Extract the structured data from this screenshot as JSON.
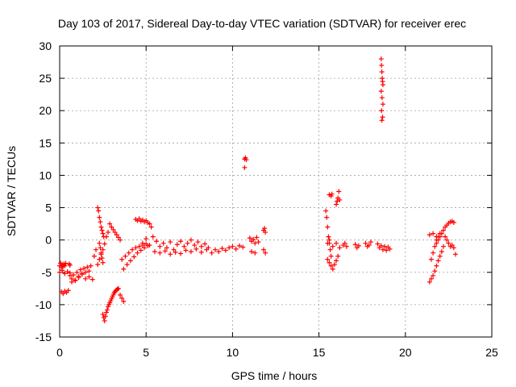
{
  "chart_data": {
    "type": "scatter",
    "title": "Day 103 of 2017, Sidereal Day-to-day VTEC variation (SDTVAR) for receiver erec",
    "xlabel": "GPS time / hours",
    "ylabel": "SDTVAR / TECUs",
    "xlim": [
      0,
      25
    ],
    "ylim": [
      -15,
      30
    ],
    "xticks": [
      0,
      5,
      10,
      15,
      20,
      25
    ],
    "yticks": [
      -15,
      -10,
      -5,
      0,
      5,
      10,
      15,
      20,
      25,
      30
    ],
    "grid": true,
    "marker": "+",
    "color": "#ff0000",
    "series": [
      {
        "name": "SDTVAR",
        "x": [
          0.0,
          0.05,
          0.1,
          0.15,
          0.2,
          0.25,
          0.3,
          0.35,
          0.1,
          0.2,
          0.3,
          0.4,
          0.5,
          0.55,
          0.6,
          0.0,
          0.15,
          0.3,
          0.45,
          0.6,
          0.6,
          0.7,
          0.8,
          0.9,
          1.0,
          1.1,
          1.2,
          1.3,
          1.4,
          1.5,
          1.6,
          1.7,
          1.8,
          0.7,
          0.9,
          1.1,
          1.3,
          1.5,
          1.7,
          1.9,
          2.0,
          2.1,
          2.2,
          2.25,
          2.3,
          2.35,
          2.4,
          2.45,
          2.5,
          2.55,
          2.3,
          2.35,
          2.4,
          2.45,
          2.5,
          2.2,
          2.3,
          2.4,
          2.5,
          2.6,
          2.7,
          2.8,
          2.5,
          2.55,
          2.6,
          2.65,
          2.7,
          2.75,
          2.8,
          2.85,
          2.9,
          2.95,
          3.0,
          3.05,
          3.1,
          3.15,
          3.2,
          3.25,
          3.3,
          3.35,
          3.4,
          3.5,
          3.6,
          3.7,
          2.9,
          3.0,
          3.1,
          3.2,
          3.3,
          3.4,
          3.5,
          3.6,
          3.8,
          4.0,
          4.2,
          4.4,
          4.6,
          4.8,
          5.0,
          3.7,
          3.9,
          4.1,
          4.3,
          4.5,
          4.7,
          4.9,
          5.1,
          4.4,
          4.5,
          4.6,
          4.7,
          4.8,
          4.9,
          5.0,
          5.1,
          5.2,
          5.3,
          4.8,
          5.0,
          5.2,
          5.4,
          5.6,
          5.8,
          6.0,
          6.2,
          6.4,
          6.6,
          6.8,
          7.0,
          7.2,
          7.4,
          7.6,
          7.8,
          8.0,
          8.2,
          8.4,
          5.5,
          5.8,
          6.1,
          6.4,
          6.7,
          7.0,
          7.3,
          7.6,
          7.9,
          8.2,
          8.5,
          8.6,
          8.8,
          9.0,
          9.2,
          9.4,
          9.6,
          9.8,
          10.0,
          10.2,
          10.4,
          10.6,
          10.7,
          10.75,
          10.8,
          10.7,
          11.0,
          11.1,
          11.2,
          11.3,
          11.4,
          11.5,
          11.1,
          11.3,
          11.8,
          11.85,
          11.9,
          11.8,
          11.9,
          15.4,
          15.45,
          15.5,
          15.55,
          15.6,
          15.65,
          15.7,
          15.5,
          15.6,
          15.7,
          15.8,
          15.9,
          16.0,
          16.1,
          15.6,
          15.7,
          15.75,
          16.0,
          16.05,
          16.1,
          16.15,
          16.2,
          15.5,
          15.6,
          15.8,
          16.0,
          16.2,
          16.4,
          16.5,
          16.6,
          17.1,
          17.2,
          17.3,
          17.7,
          17.8,
          17.9,
          18.0,
          18.4,
          18.5,
          18.6,
          18.7,
          18.8,
          18.9,
          19.0,
          19.1,
          18.6,
          18.62,
          18.64,
          18.66,
          18.68,
          18.7,
          18.6,
          18.65,
          18.7,
          18.62,
          18.68,
          18.64,
          21.4,
          21.5,
          21.6,
          21.7,
          21.8,
          21.9,
          22.0,
          22.1,
          22.2,
          21.5,
          21.6,
          21.7,
          21.8,
          21.9,
          22.0,
          21.8,
          21.9,
          22.0,
          22.1,
          22.2,
          22.3,
          22.4,
          22.5,
          22.6,
          22.7,
          22.8,
          22.3,
          22.4,
          22.5,
          22.6,
          22.7,
          22.8,
          22.9,
          21.4,
          21.6,
          21.8
        ],
        "y": [
          -4.0,
          -3.6,
          -4.2,
          -3.8,
          -4.1,
          -3.7,
          -4.0,
          -3.6,
          -8.0,
          -8.3,
          -7.9,
          -8.1,
          -7.8,
          -3.7,
          -3.9,
          -5.0,
          -4.7,
          -5.2,
          -4.9,
          -5.1,
          -5.5,
          -6.0,
          -5.4,
          -6.2,
          -5.0,
          -5.6,
          -4.6,
          -5.3,
          -4.4,
          -5.0,
          -4.2,
          -4.8,
          -4.0,
          -6.5,
          -6.3,
          -5.8,
          -5.2,
          -6.0,
          -5.7,
          -6.1,
          -2.5,
          -1.5,
          5.0,
          4.5,
          3.5,
          2.8,
          2.0,
          1.5,
          1.0,
          0.5,
          -0.5,
          -1.2,
          -2.0,
          -2.8,
          -3.5,
          -3.8,
          -3.0,
          -2.2,
          -1.5,
          -0.6,
          0.5,
          1.2,
          -11.5,
          -12.0,
          -12.5,
          -11.8,
          -11.2,
          -10.8,
          -10.3,
          -10.0,
          -9.7,
          -9.4,
          -9.1,
          -8.8,
          -8.5,
          -8.2,
          -8.0,
          -7.8,
          -7.7,
          -7.6,
          -7.5,
          -8.5,
          -9.0,
          -9.5,
          2.5,
          2.0,
          1.6,
          1.2,
          0.8,
          0.4,
          0.0,
          -3.0,
          -2.5,
          -2.0,
          -1.5,
          -1.2,
          -1.0,
          -0.8,
          -0.6,
          -4.5,
          -3.8,
          -3.2,
          -2.6,
          -2.0,
          -1.6,
          -1.2,
          -0.9,
          3.2,
          3.0,
          3.3,
          2.9,
          3.1,
          2.8,
          3.0,
          2.7,
          2.5,
          2.0,
          -0.5,
          0.2,
          -0.8,
          0.5,
          -0.2,
          -1.0,
          -0.5,
          -1.2,
          -0.3,
          -1.5,
          -0.7,
          -0.2,
          -1.0,
          -0.5,
          0.0,
          -0.8,
          -0.3,
          -1.0,
          -0.6,
          -1.8,
          -2.0,
          -1.7,
          -2.2,
          -1.9,
          -2.1,
          -1.6,
          -1.8,
          -1.4,
          -1.9,
          -1.5,
          -1.2,
          -2.0,
          -1.5,
          -1.8,
          -1.3,
          -1.6,
          -1.2,
          -1.0,
          -1.4,
          -0.9,
          -1.1,
          12.5,
          12.7,
          12.4,
          11.2,
          0.3,
          -0.2,
          0.1,
          -0.5,
          0.4,
          -0.3,
          -1.8,
          -2.0,
          1.5,
          1.8,
          1.2,
          -1.5,
          -2.0,
          4.5,
          3.5,
          2.0,
          0.5,
          -0.5,
          -1.5,
          -2.5,
          -3.0,
          -3.5,
          -4.0,
          -4.5,
          -3.8,
          -3.2,
          -2.5,
          7.0,
          6.8,
          7.1,
          5.5,
          6.0,
          6.5,
          7.5,
          6.2,
          -0.5,
          0.0,
          -1.0,
          -0.5,
          -1.2,
          -0.8,
          -0.5,
          -1.0,
          -0.7,
          -1.2,
          -0.9,
          -0.5,
          -1.0,
          -0.8,
          -0.3,
          -0.6,
          -1.2,
          -0.9,
          -1.5,
          -1.0,
          -1.6,
          -1.1,
          -1.4,
          28.0,
          27.0,
          26.0,
          25.0,
          24.5,
          24.0,
          23.0,
          22.0,
          21.0,
          20.0,
          19.0,
          18.5,
          -6.5,
          -6.0,
          -5.5,
          -4.8,
          -4.0,
          -3.2,
          -2.5,
          -1.8,
          -1.0,
          -3.0,
          -2.0,
          -1.0,
          0.0,
          0.5,
          1.0,
          -0.5,
          0.0,
          0.5,
          1.0,
          1.5,
          2.0,
          2.3,
          2.6,
          2.8,
          2.9,
          2.7,
          0.5,
          0.0,
          -0.5,
          -1.0,
          -0.8,
          -1.2,
          -2.2,
          0.8,
          1.0,
          0.5
        ]
      }
    ]
  }
}
